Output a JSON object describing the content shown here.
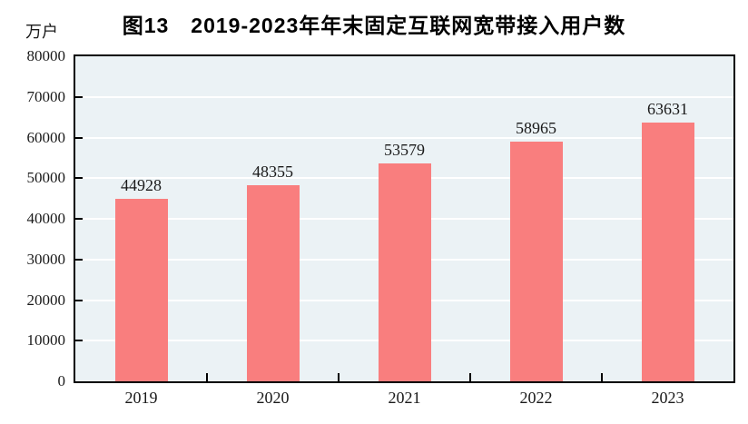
{
  "title": "图13　2019-2023年年末固定互联网宽带接入用户数",
  "unit_label": "万户",
  "colors": {
    "bar": "#F97E7E",
    "plot_bg": "#EBF2F5",
    "gridline": "#FFFFFF",
    "axis": "#000000",
    "text": "#1A1A1A"
  },
  "chart_data": {
    "type": "bar",
    "title": "图13　2019-2023年年末固定互联网宽带接入用户数",
    "categories": [
      "2019",
      "2020",
      "2021",
      "2022",
      "2023"
    ],
    "values": [
      44928,
      48355,
      53579,
      58965,
      63631
    ],
    "xlabel": "",
    "ylabel": "万户",
    "ylim": [
      0,
      80000
    ],
    "yticks": [
      0,
      10000,
      20000,
      30000,
      40000,
      50000,
      60000,
      70000,
      80000
    ],
    "grid": true,
    "gridline_orientation": "horizontal",
    "legend_position": "none",
    "data_labels": true
  }
}
